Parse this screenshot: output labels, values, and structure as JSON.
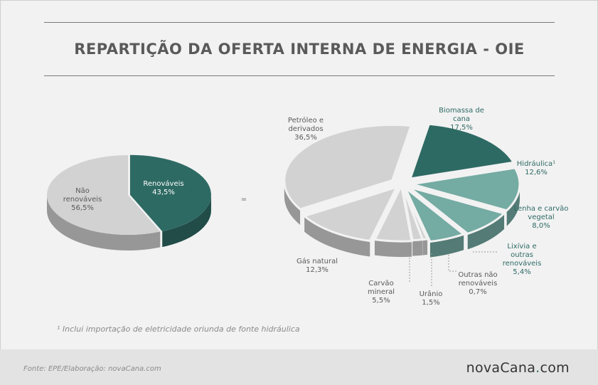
{
  "title": "REPARTIÇÃO DA OFERTA INTERNA DE ENERGIA - OIE",
  "equals": "=",
  "chart_data": [
    {
      "type": "pie",
      "categories": [
        "Renováveis",
        "Não renováveis"
      ],
      "values": [
        43.5,
        56.5
      ],
      "value_labels": [
        "43,5%",
        "56,5%"
      ],
      "colors": [
        "#2e6a64",
        "#d2d2d2"
      ]
    },
    {
      "type": "pie",
      "categories": [
        "Biomassa de cana",
        "Hidráulica¹",
        "Lenha e carvão vegetal",
        "Lixívia e outras renováveis",
        "Outras não renováveis",
        "Urânio",
        "Carvão mineral",
        "Gás natural",
        "Petróleo e derivados"
      ],
      "values": [
        17.5,
        12.6,
        8.0,
        5.4,
        0.7,
        1.5,
        5.5,
        12.3,
        36.5
      ],
      "value_labels": [
        "17,5%",
        "12,6%",
        "8,0%",
        "5,4%",
        "0,7%",
        "1,5%",
        "5,5%",
        "12,3%",
        "36,5%"
      ],
      "colors": [
        "#2e6a64",
        "#74aba3",
        "#74aba3",
        "#74aba3",
        "#d2d2d2",
        "#d2d2d2",
        "#d2d2d2",
        "#d2d2d2",
        "#d2d2d2"
      ]
    }
  ],
  "footnote": "¹ Inclui importação de eletricidade oriunda de fonte hidráulica",
  "source": "Fonte: EPE/Elaboração: novaCana.com",
  "logo": {
    "word": "novaCana",
    "dot": ".",
    "tld": "com"
  }
}
